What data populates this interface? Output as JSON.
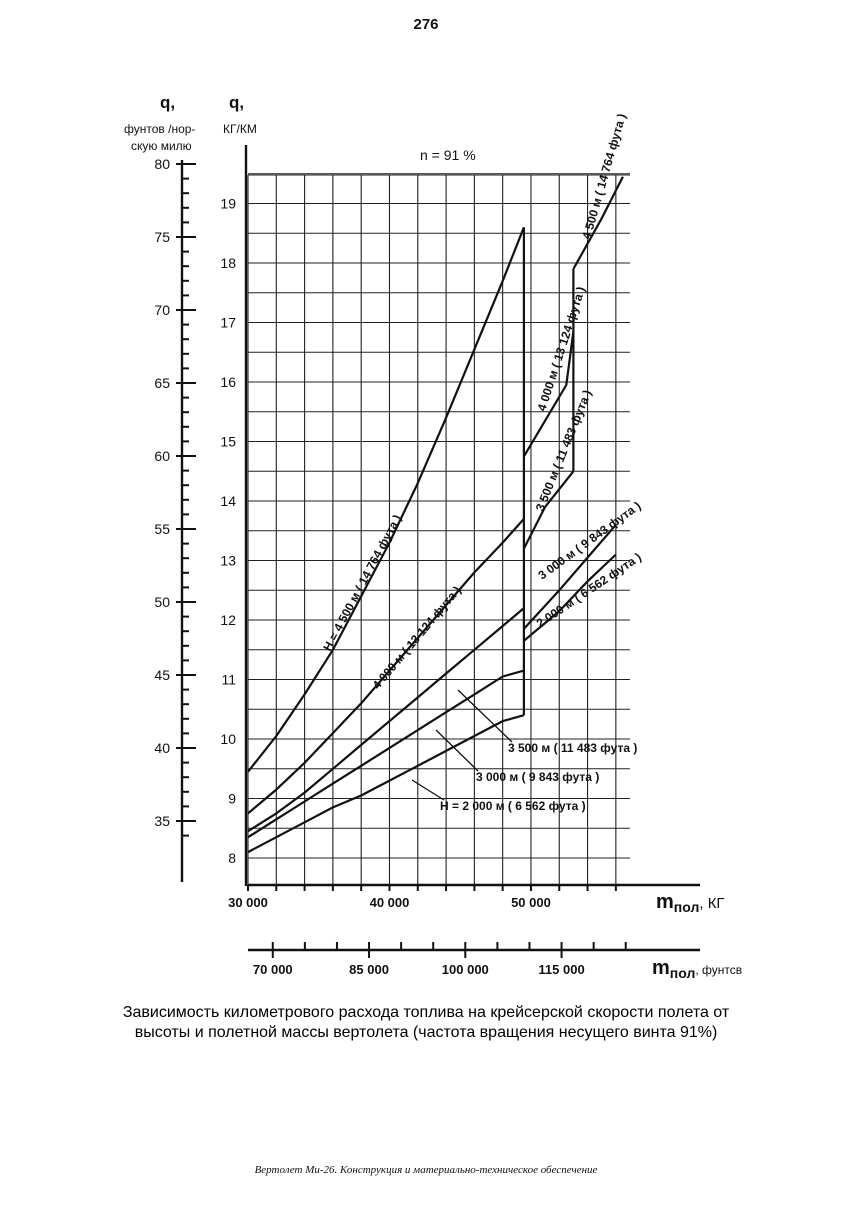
{
  "page_number": "276",
  "caption": {
    "line1": "Зависимость километрового расхода топлива на крейсерской скорости полета от",
    "line2": "высоты и полетной массы вертолета (частота вращения несущего винта 91%)"
  },
  "footer": "Вертолет Ми-26. Конструкция и материально-техническое обеспечение",
  "chart_data": {
    "type": "line",
    "annotation": "n = 91 %",
    "y_left": {
      "symbol": "q,",
      "label_line1": "фунтов /нор-",
      "label_line2": "скую милю",
      "ticks": [
        35,
        40,
        45,
        50,
        55,
        60,
        65,
        70,
        75,
        80
      ]
    },
    "y_right": {
      "symbol": "q,",
      "label": "КГ/КМ",
      "range": [
        8,
        19.5
      ],
      "ticks": [
        8,
        9,
        10,
        11,
        12,
        13,
        14,
        15,
        16,
        17,
        18,
        19
      ]
    },
    "x_main": {
      "label_main": "m",
      "label_sub": "пол",
      "label_unit": ", КГ",
      "range": [
        30000,
        57000
      ],
      "ticks": [
        30000,
        40000,
        50000
      ],
      "tick_labels": [
        "30 000",
        "40 000",
        "50 000"
      ]
    },
    "x_secondary": {
      "label_main": "m",
      "label_sub": "пол",
      "label_unit": ", фунтсв",
      "ticks": [
        70000,
        85000,
        100000,
        115000
      ],
      "tick_labels": [
        "70 000",
        "85 000",
        "100 000",
        "115 000"
      ]
    },
    "grid": true,
    "series": [
      {
        "name": "H = 4 500 м ( 14 764 фута )",
        "low_mass": [
          [
            30000,
            9.45
          ],
          [
            32000,
            10.05
          ],
          [
            34000,
            10.75
          ],
          [
            36000,
            11.5
          ],
          [
            38000,
            12.4
          ],
          [
            40000,
            13.3
          ],
          [
            42000,
            14.3
          ],
          [
            44000,
            15.4
          ],
          [
            46000,
            16.55
          ],
          [
            48000,
            17.7
          ],
          [
            49500,
            18.6
          ]
        ],
        "high_mass_label": "4 500 м ( 14 764 фута )",
        "high_mass": [
          [
            53000,
            17.9
          ],
          [
            55000,
            18.75
          ],
          [
            56500,
            19.45
          ]
        ]
      },
      {
        "name": "4 000 м ( 13 124 фута )",
        "low_mass": [
          [
            30000,
            8.75
          ],
          [
            32000,
            9.15
          ],
          [
            34000,
            9.6
          ],
          [
            36000,
            10.1
          ],
          [
            38000,
            10.6
          ],
          [
            40000,
            11.15
          ],
          [
            42000,
            11.7
          ],
          [
            44000,
            12.25
          ],
          [
            46000,
            12.8
          ],
          [
            48000,
            13.3
          ],
          [
            49500,
            13.7
          ]
        ],
        "high_mass_label": "4 000 м ( 13 124 фута )",
        "high_mass": [
          [
            49500,
            14.75
          ],
          [
            51000,
            15.35
          ],
          [
            52500,
            15.95
          ],
          [
            53000,
            16.85
          ]
        ]
      },
      {
        "name": "3 500 м ( 11 483 фута )",
        "low_mass": [
          [
            30000,
            8.45
          ],
          [
            32000,
            8.75
          ],
          [
            34000,
            9.1
          ],
          [
            36000,
            9.5
          ],
          [
            38000,
            9.9
          ],
          [
            40000,
            10.3
          ],
          [
            42000,
            10.7
          ],
          [
            44000,
            11.1
          ],
          [
            46000,
            11.5
          ],
          [
            48000,
            11.9
          ],
          [
            49500,
            12.2
          ]
        ],
        "high_mass_label": "3 500 м ( 11 483 фута )",
        "high_mass": [
          [
            49500,
            13.2
          ],
          [
            51000,
            13.9
          ],
          [
            53000,
            14.5
          ]
        ]
      },
      {
        "name": "3 000 м ( 9 843 фута )",
        "low_mass": [
          [
            30000,
            8.35
          ],
          [
            32000,
            8.65
          ],
          [
            34000,
            8.95
          ],
          [
            36000,
            9.25
          ],
          [
            38000,
            9.55
          ],
          [
            40000,
            9.85
          ],
          [
            42000,
            10.15
          ],
          [
            44000,
            10.45
          ],
          [
            46000,
            10.75
          ],
          [
            48000,
            11.05
          ],
          [
            49500,
            11.15
          ]
        ],
        "high_mass_label": "3 000 м ( 9 843 фута )",
        "high_mass": [
          [
            49500,
            11.85
          ],
          [
            52000,
            12.5
          ],
          [
            54000,
            13.05
          ],
          [
            56000,
            13.6
          ]
        ]
      },
      {
        "name": "H = 2 000 м ( 6 562 фута )",
        "low_mass": [
          [
            30000,
            8.1
          ],
          [
            32000,
            8.35
          ],
          [
            34000,
            8.6
          ],
          [
            36000,
            8.85
          ],
          [
            38000,
            9.05
          ],
          [
            40000,
            9.3
          ],
          [
            42000,
            9.55
          ],
          [
            44000,
            9.8
          ],
          [
            46000,
            10.05
          ],
          [
            48000,
            10.3
          ],
          [
            49500,
            10.4
          ]
        ],
        "high_mass_label": "2 000 м ( 6 562 фута )",
        "high_mass": [
          [
            49500,
            11.65
          ],
          [
            52000,
            12.15
          ],
          [
            54000,
            12.65
          ],
          [
            56000,
            13.1
          ]
        ]
      }
    ]
  }
}
